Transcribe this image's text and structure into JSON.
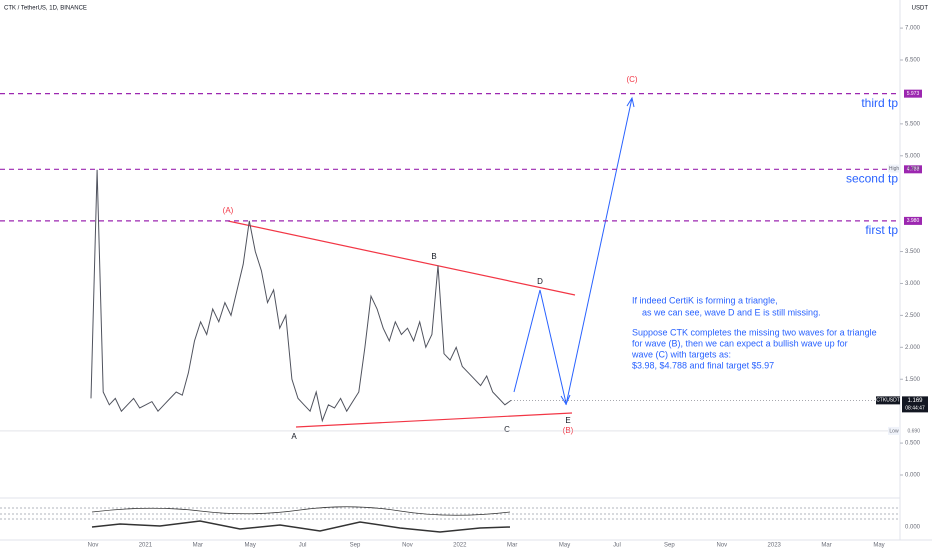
{
  "chart_data": {
    "type": "line",
    "title": "CTK / TetherUS, 1D, BINANCE",
    "currency": "USDT",
    "color": "#50535e",
    "ylim": [
      0,
      7.44
    ],
    "yticks": [
      {
        "value": 0,
        "label": "0.000"
      },
      {
        "value": 0.5,
        "label": "0.500"
      },
      {
        "value": 1.5,
        "label": "1.500"
      },
      {
        "value": 2,
        "label": "2.000"
      },
      {
        "value": 2.5,
        "label": "2.500"
      },
      {
        "value": 3,
        "label": "3.000"
      },
      {
        "value": 3.5,
        "label": "3.500"
      },
      {
        "value": 5,
        "label": "5.000"
      },
      {
        "value": 5.5,
        "label": "5.500"
      },
      {
        "value": 6.5,
        "label": "6.500"
      },
      {
        "value": 7,
        "label": "7.000"
      }
    ],
    "indicator_yticks": [
      {
        "value": 0,
        "label": "0.000"
      }
    ],
    "x_labels": [
      "Nov",
      "2021",
      "Mar",
      "May",
      "Jul",
      "Sep",
      "Nov",
      "2022",
      "Mar",
      "May",
      "Jul",
      "Sep",
      "Nov",
      "2023",
      "Mar",
      "May"
    ],
    "values": [
      1.2,
      4.78,
      1.3,
      1.1,
      1.2,
      1.0,
      1.1,
      1.2,
      1.05,
      1.1,
      1.15,
      1.0,
      1.1,
      1.2,
      1.3,
      1.25,
      1.6,
      2.1,
      2.4,
      2.2,
      2.6,
      2.4,
      2.7,
      2.5,
      2.9,
      3.3,
      3.98,
      3.5,
      3.2,
      2.7,
      2.9,
      2.3,
      2.5,
      1.5,
      1.2,
      1.1,
      1.0,
      1.3,
      0.85,
      1.1,
      1.05,
      1.2,
      1.0,
      1.15,
      1.3,
      2.0,
      2.8,
      2.6,
      2.3,
      2.1,
      2.4,
      2.2,
      2.3,
      2.1,
      2.4,
      2.0,
      2.2,
      3.28,
      1.9,
      1.8,
      2.0,
      1.7,
      1.6,
      1.5,
      1.4,
      1.55,
      1.3,
      1.2,
      1.1,
      1.169
    ],
    "levels": [
      {
        "value": 5.973,
        "label": "5.973",
        "name": "third tp"
      },
      {
        "value": 4.788,
        "label": "4.788",
        "name": "second tp"
      },
      {
        "value": 3.98,
        "label": "3.980",
        "name": "first tp"
      }
    ],
    "level_color": "#9c27b0",
    "high": {
      "label": "High",
      "value": 4.8,
      "value_label": "4.800"
    },
    "low": {
      "label": "Low",
      "value": 0.69,
      "value_label": "0.690"
    },
    "last": {
      "symbol": "CTKUSDT",
      "value": 1.169,
      "value_label": "1.169",
      "countdown": "08:44:47"
    },
    "waves": {
      "A_paren": "(A)",
      "A": "A",
      "B": "B",
      "C": "C",
      "D": "D",
      "E": "E",
      "B_paren": "(B)",
      "C_paren": "(C)"
    },
    "note": [
      "If indeed CertiK is forming a triangle,",
      "as we can see, wave D and E is still missing.",
      "Suppose CTK completes the missing two waves for a triangle",
      "for wave (B), then we can expect a bullish wave up for",
      "wave (C) with targets as:",
      "$3.98, $4.788 and final target $5.97"
    ]
  }
}
